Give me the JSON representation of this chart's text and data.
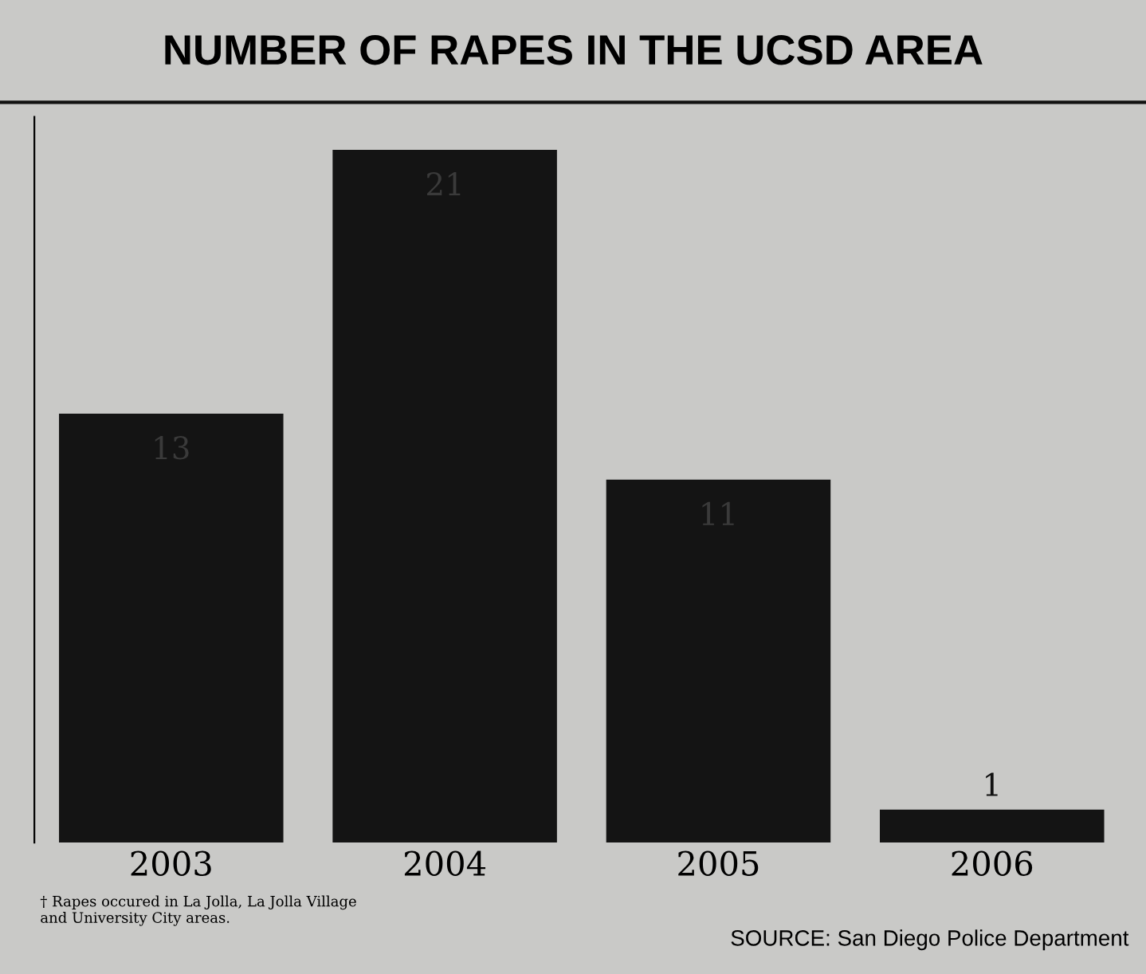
{
  "chart_data": {
    "type": "bar",
    "title": "NUMBER OF RAPES IN THE UCSD AREA",
    "categories": [
      "2003",
      "2004",
      "2005",
      "2006"
    ],
    "values": [
      13,
      21,
      11,
      1
    ],
    "color": "#141414",
    "data_labels": true,
    "ylim": [
      0,
      22
    ],
    "tick_labels": "x",
    "grid": false,
    "annotations": [
      "† Rapes occured in La Jolla, La Jolla Village\nand University City areas.",
      "SOURCE: San Diego Police Department"
    ]
  }
}
